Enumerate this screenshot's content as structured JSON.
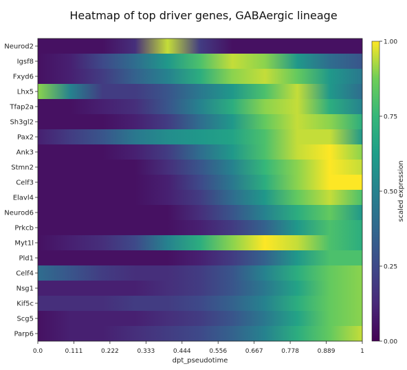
{
  "chart_data": {
    "type": "heatmap",
    "title": "Heatmap of top driver genes, GABAergic lineage",
    "xlabel": "dpt_pseudotime",
    "ylabel": "",
    "x_ticks": [
      "0.0",
      "0.111",
      "0.222",
      "0.333",
      "0.444",
      "0.556",
      "0.667",
      "0.778",
      "0.889",
      "1"
    ],
    "x_range": [
      0,
      1
    ],
    "y_labels": [
      "Neurod2",
      "Igsf8",
      "Fxyd6",
      "Lhx5",
      "Tfap2a",
      "Sh3gl2",
      "Pax2",
      "Ank3",
      "Stmn2",
      "Celf3",
      "Elavl4",
      "Neurod6",
      "Prkcb",
      "Myt1l",
      "Pld1",
      "Celf4",
      "Nsg1",
      "Kif5c",
      "Scg5",
      "Parp6"
    ],
    "colorbar": {
      "label": "scaled expression",
      "range": [
        0,
        1
      ],
      "ticks": [
        "0.00",
        "0.25",
        "0.50",
        "0.75",
        "1.00"
      ]
    },
    "colormap": "viridis",
    "grid": false,
    "rows_description_x": [
      0.0,
      0.1,
      0.2,
      0.3,
      0.4,
      0.5,
      0.6,
      0.7,
      0.8,
      0.9,
      1.0
    ],
    "values": [
      [
        0.05,
        0.05,
        0.05,
        0.15,
        0.95,
        0.2,
        0.05,
        0.05,
        0.05,
        0.05,
        0.05
      ],
      [
        0.05,
        0.1,
        0.25,
        0.4,
        0.6,
        0.8,
        0.95,
        0.9,
        0.6,
        0.4,
        0.3
      ],
      [
        0.05,
        0.1,
        0.2,
        0.35,
        0.5,
        0.7,
        0.9,
        0.95,
        0.85,
        0.6,
        0.45
      ],
      [
        0.9,
        0.5,
        0.2,
        0.2,
        0.3,
        0.45,
        0.6,
        0.8,
        0.95,
        0.6,
        0.4
      ],
      [
        0.05,
        0.05,
        0.1,
        0.15,
        0.3,
        0.5,
        0.7,
        0.9,
        0.95,
        0.7,
        0.5
      ],
      [
        0.05,
        0.05,
        0.05,
        0.1,
        0.2,
        0.4,
        0.6,
        0.85,
        0.95,
        0.9,
        0.7
      ],
      [
        0.1,
        0.2,
        0.3,
        0.45,
        0.55,
        0.6,
        0.65,
        0.8,
        0.95,
        0.95,
        0.6
      ],
      [
        0.05,
        0.05,
        0.05,
        0.1,
        0.2,
        0.4,
        0.6,
        0.8,
        0.95,
        1.0,
        0.9
      ],
      [
        0.05,
        0.05,
        0.05,
        0.05,
        0.15,
        0.3,
        0.5,
        0.75,
        0.9,
        1.0,
        0.95
      ],
      [
        0.05,
        0.05,
        0.05,
        0.05,
        0.1,
        0.25,
        0.45,
        0.7,
        0.9,
        1.0,
        1.0
      ],
      [
        0.05,
        0.05,
        0.05,
        0.05,
        0.1,
        0.2,
        0.4,
        0.6,
        0.85,
        0.95,
        0.8
      ],
      [
        0.05,
        0.05,
        0.05,
        0.05,
        0.05,
        0.15,
        0.3,
        0.5,
        0.7,
        0.85,
        0.6
      ],
      [
        0.05,
        0.05,
        0.05,
        0.05,
        0.05,
        0.1,
        0.2,
        0.35,
        0.6,
        0.8,
        0.7
      ],
      [
        0.05,
        0.1,
        0.15,
        0.25,
        0.5,
        0.7,
        0.9,
        1.0,
        0.95,
        0.8,
        0.7
      ],
      [
        0.05,
        0.05,
        0.05,
        0.05,
        0.05,
        0.1,
        0.2,
        0.35,
        0.6,
        0.8,
        0.8
      ],
      [
        0.4,
        0.3,
        0.2,
        0.15,
        0.15,
        0.2,
        0.3,
        0.5,
        0.7,
        0.85,
        0.9
      ],
      [
        0.1,
        0.1,
        0.1,
        0.1,
        0.15,
        0.2,
        0.3,
        0.45,
        0.65,
        0.85,
        0.9
      ],
      [
        0.15,
        0.15,
        0.15,
        0.2,
        0.2,
        0.25,
        0.35,
        0.5,
        0.7,
        0.85,
        0.9
      ],
      [
        0.05,
        0.1,
        0.1,
        0.1,
        0.15,
        0.2,
        0.3,
        0.45,
        0.65,
        0.85,
        0.9
      ],
      [
        0.05,
        0.1,
        0.1,
        0.15,
        0.2,
        0.25,
        0.35,
        0.5,
        0.7,
        0.85,
        0.95
      ]
    ]
  }
}
